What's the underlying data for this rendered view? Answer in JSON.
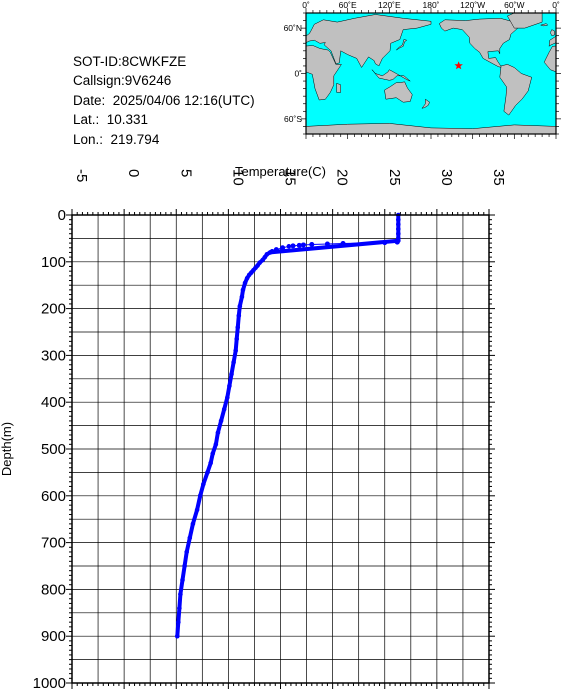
{
  "info": {
    "sot_id": "SOT-ID:8CWKFZE",
    "callsign": "Callsign:9V6246",
    "date": "Date:  2025/04/06 12:16(UTC)",
    "lat": "Lat.:  10.331",
    "lon": "Lon.:  219.794"
  },
  "map": {
    "lon_labels": [
      "0˚",
      "60˚E",
      "120˚E",
      "180˚",
      "120˚W",
      "60˚W",
      "0˚"
    ],
    "lat_labels": [
      "60˚N",
      "0˚",
      "60˚S"
    ],
    "ocean_color": "#00ffff",
    "land_color": "#c0c0c0",
    "marker": {
      "lat": 10.331,
      "lon": 219.794,
      "color": "#ff0000",
      "symbol": "star"
    }
  },
  "chart_data": {
    "type": "line",
    "xlabel": "Temperature(C)",
    "ylabel": "Depth(m)",
    "xlim": [
      -5,
      35
    ],
    "ylim": [
      0,
      1000
    ],
    "y_inverted": true,
    "x_ticks": [
      "-5",
      "0",
      "5",
      "10",
      "15",
      "20",
      "25",
      "30",
      "35"
    ],
    "y_ticks": [
      "0",
      "100",
      "200",
      "300",
      "400",
      "500",
      "600",
      "700",
      "800",
      "900",
      "1000"
    ],
    "grid": true,
    "series_color": "#0000ff",
    "series": [
      {
        "points": [
          [
            26.3,
            0
          ],
          [
            26.3,
            10
          ],
          [
            26.3,
            20
          ],
          [
            26.3,
            30
          ],
          [
            26.3,
            40
          ],
          [
            26.3,
            50
          ],
          [
            26.3,
            55
          ],
          [
            26.2,
            58
          ],
          [
            25.0,
            59
          ],
          [
            21.0,
            61
          ],
          [
            19.5,
            62
          ],
          [
            18.0,
            63
          ],
          [
            17.2,
            64
          ],
          [
            16.8,
            65
          ],
          [
            16.2,
            66
          ],
          [
            15.8,
            67
          ],
          [
            15.2,
            70
          ],
          [
            14.6,
            74
          ],
          [
            14.2,
            78
          ],
          [
            14.0,
            80
          ],
          [
            13.7,
            84
          ],
          [
            13.5,
            90
          ],
          [
            13.3,
            96
          ],
          [
            13.0,
            102
          ],
          [
            12.8,
            108
          ],
          [
            12.6,
            113
          ],
          [
            12.4,
            118
          ],
          [
            12.2,
            123
          ],
          [
            12.0,
            128
          ],
          [
            11.8,
            135
          ],
          [
            11.6,
            145
          ],
          [
            11.4,
            160
          ],
          [
            11.3,
            175
          ],
          [
            11.1,
            195
          ],
          [
            11.0,
            215
          ],
          [
            10.9,
            240
          ],
          [
            10.8,
            265
          ],
          [
            10.7,
            290
          ],
          [
            10.5,
            315
          ],
          [
            10.3,
            340
          ],
          [
            10.1,
            365
          ],
          [
            9.9,
            390
          ],
          [
            9.6,
            415
          ],
          [
            9.3,
            440
          ],
          [
            9.0,
            465
          ],
          [
            8.8,
            490
          ],
          [
            8.5,
            510
          ],
          [
            8.3,
            530
          ],
          [
            8.0,
            550
          ],
          [
            7.6,
            575
          ],
          [
            7.3,
            600
          ],
          [
            7.0,
            630
          ],
          [
            6.6,
            660
          ],
          [
            6.3,
            690
          ],
          [
            6.0,
            720
          ],
          [
            5.8,
            750
          ],
          [
            5.6,
            780
          ],
          [
            5.4,
            810
          ],
          [
            5.3,
            840
          ],
          [
            5.2,
            870
          ],
          [
            5.1,
            900
          ]
        ],
        "highlighted_points": [
          [
            26.2,
            58
          ],
          [
            25.0,
            59
          ],
          [
            21.0,
            61
          ],
          [
            19.5,
            62
          ],
          [
            18.0,
            63
          ],
          [
            17.2,
            64
          ],
          [
            16.8,
            65
          ],
          [
            16.2,
            66
          ],
          [
            15.2,
            70
          ],
          [
            14.6,
            74
          ],
          [
            14.2,
            78
          ]
        ]
      }
    ]
  }
}
